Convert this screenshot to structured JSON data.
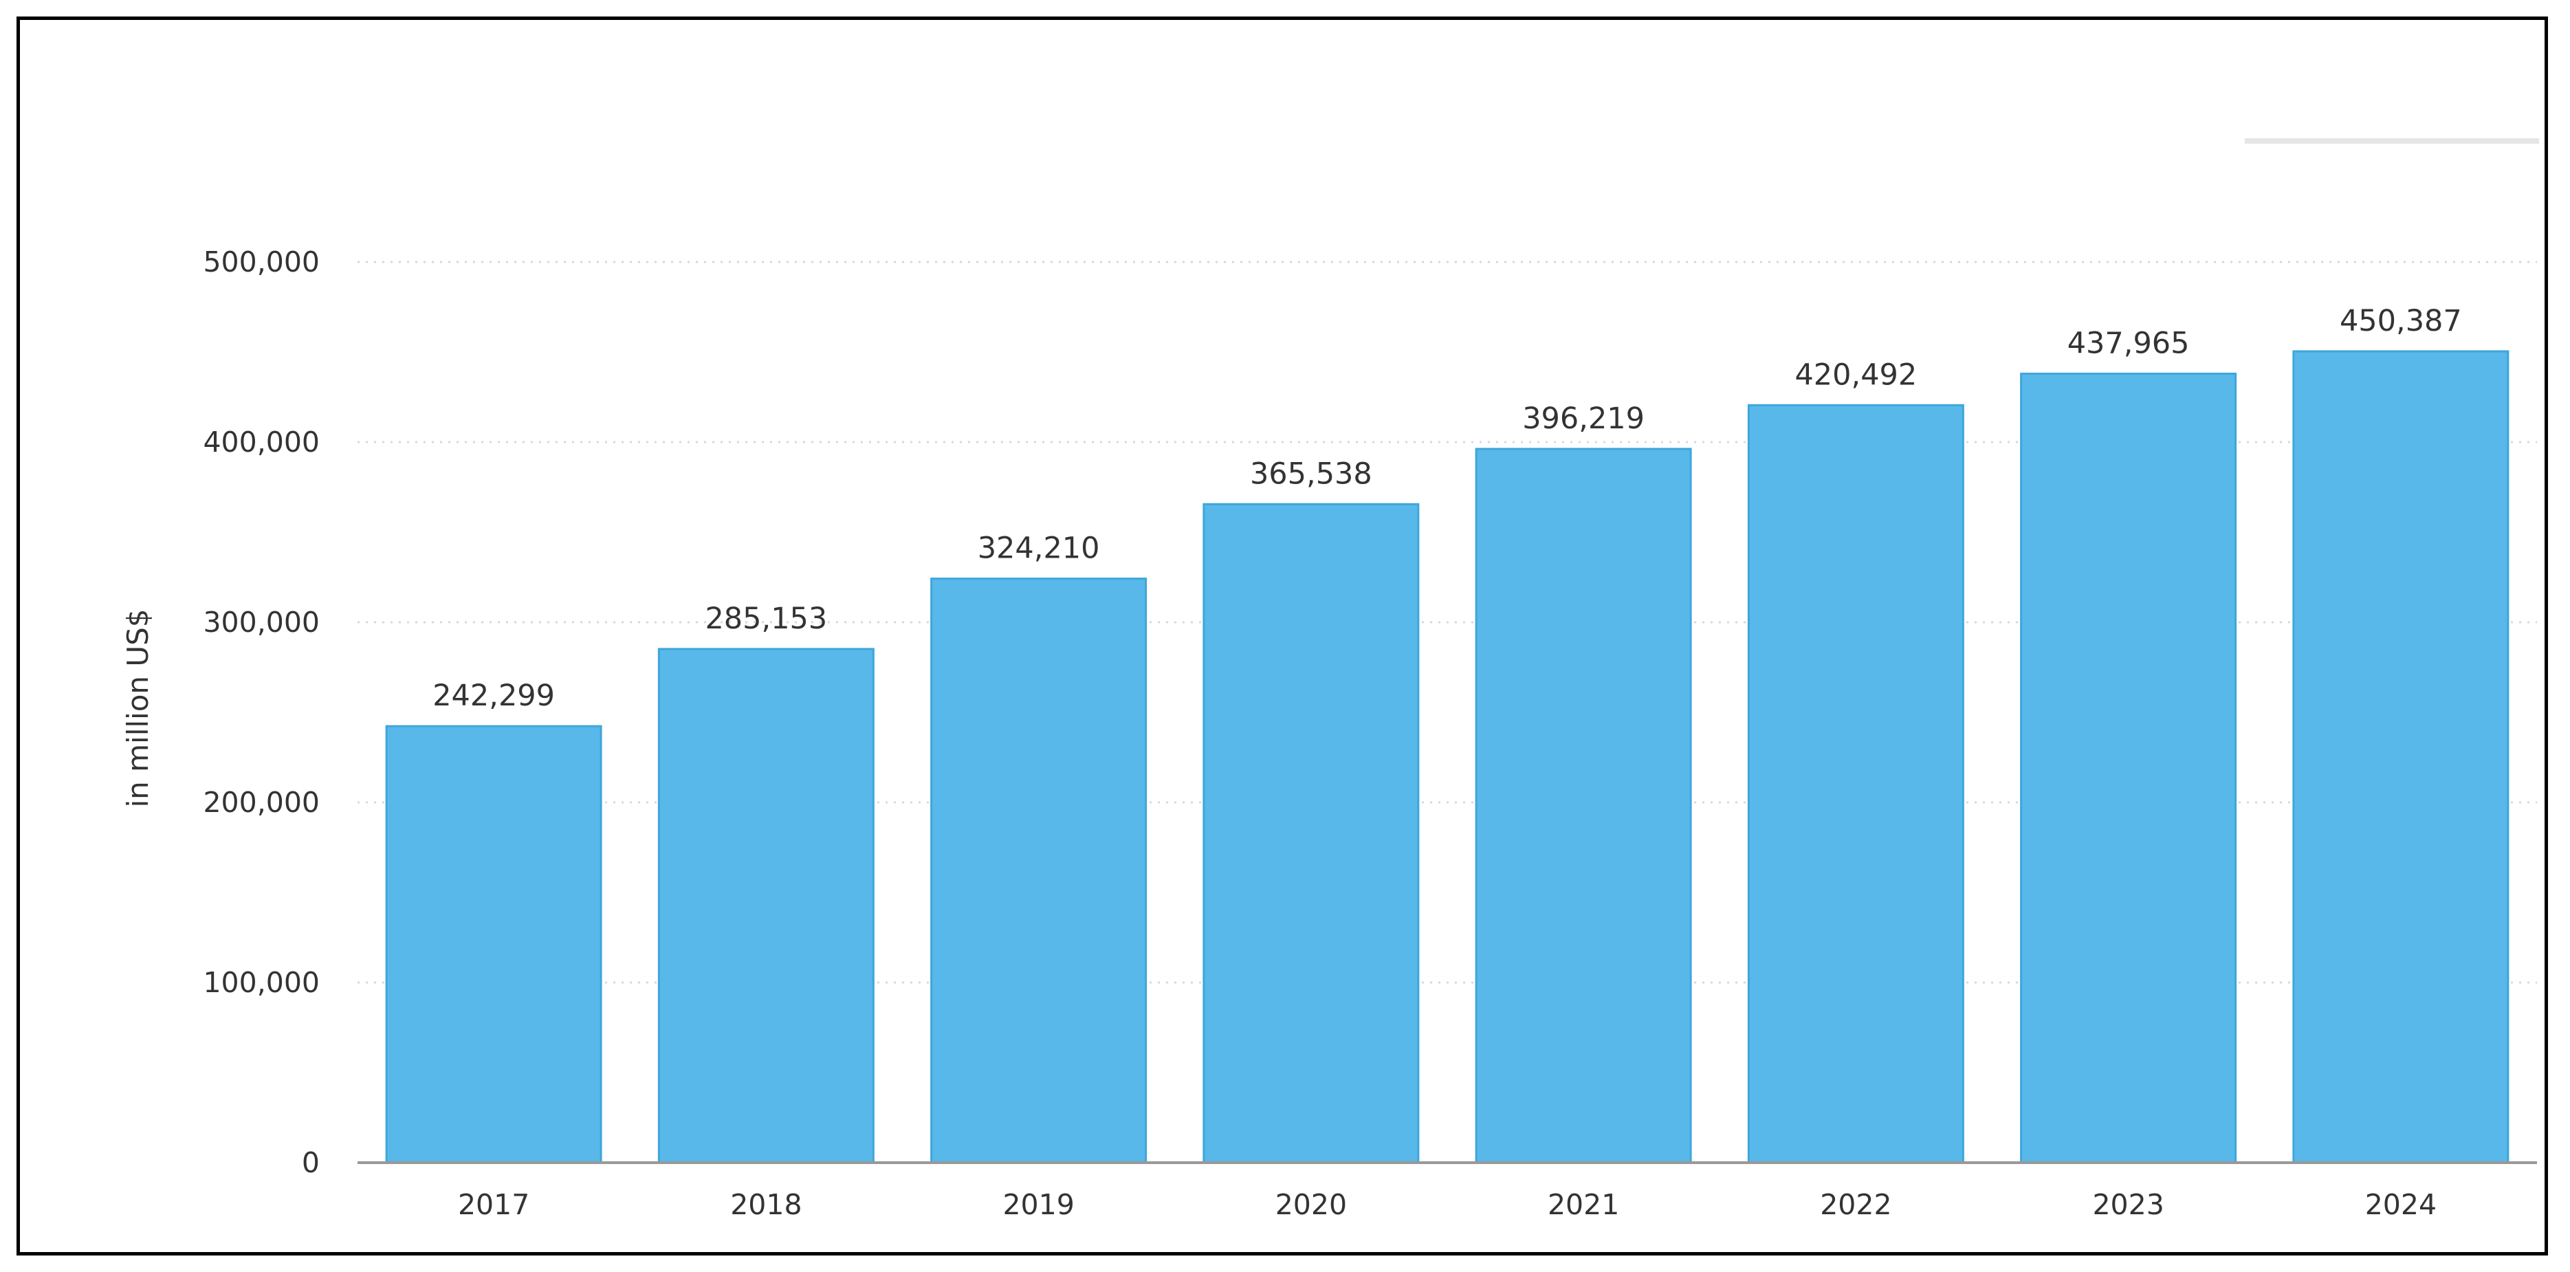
{
  "chart_data": {
    "type": "bar",
    "title": "",
    "xlabel": "",
    "ylabel": "in million US$",
    "categories": [
      "2017",
      "2018",
      "2019",
      "2020",
      "2021",
      "2022",
      "2023",
      "2024"
    ],
    "values": [
      242299,
      285153,
      324210,
      365538,
      396219,
      420492,
      437965,
      450387
    ],
    "data_labels": [
      "242,299",
      "285,153",
      "324,210",
      "365,538",
      "396,219",
      "420,492",
      "437,965",
      "450,387"
    ],
    "yticks": [
      0,
      100000,
      200000,
      300000,
      400000,
      500000
    ],
    "ytick_labels": [
      "0",
      "100,000",
      "200,000",
      "300,000",
      "400,000",
      "500,000"
    ],
    "ylim": [
      0,
      500000
    ],
    "grid": true,
    "grid_style": "dotted",
    "legend": "none",
    "colors": {
      "bar": "#58B8EA",
      "grid": "#D9D9D9",
      "axis": "#999999"
    }
  }
}
